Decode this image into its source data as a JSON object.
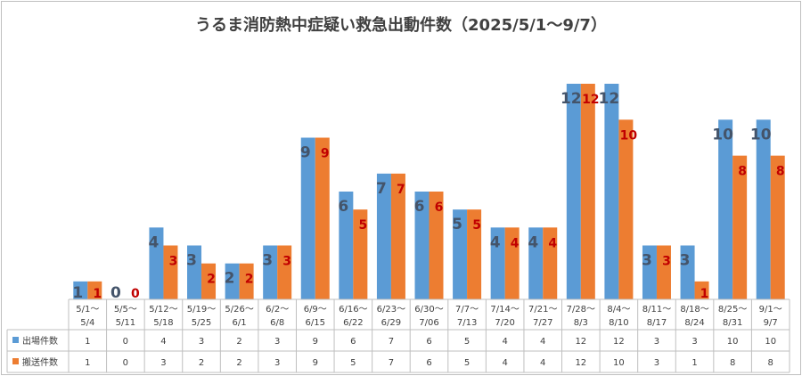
{
  "chart_data": {
    "type": "bar",
    "title": "うるま消防熱中症疑い救急出動件数（2025/5/1～9/7）",
    "categories": [
      [
        "5/1～",
        "5/4"
      ],
      [
        "5/5～",
        "5/11"
      ],
      [
        "5/12～",
        "5/18"
      ],
      [
        "5/19～",
        "5/25"
      ],
      [
        "5/26～",
        "6/1"
      ],
      [
        "6/2～",
        "6/8"
      ],
      [
        "6/9～",
        "6/15"
      ],
      [
        "6/16～",
        "6/22"
      ],
      [
        "6/23～",
        "6/29"
      ],
      [
        "6/30～",
        "7/06"
      ],
      [
        "7/7～",
        "7/13"
      ],
      [
        "7/14～",
        "7/20"
      ],
      [
        "7/21～",
        "7/27"
      ],
      [
        "7/28～",
        "8/3"
      ],
      [
        "8/4～",
        "8/10"
      ],
      [
        "8/11～",
        "8/17"
      ],
      [
        "8/18～",
        "8/24"
      ],
      [
        "8/25～",
        "8/31"
      ],
      [
        "9/1～",
        "9/7"
      ]
    ],
    "series": [
      {
        "name": "出場件数",
        "color": "#5b9bd5",
        "label_color": "#44546a",
        "values": [
          1,
          0,
          4,
          3,
          2,
          3,
          9,
          6,
          7,
          6,
          5,
          4,
          4,
          12,
          12,
          3,
          3,
          10,
          10
        ]
      },
      {
        "name": "搬送件数",
        "color": "#ed7d31",
        "label_color": "#c00000",
        "values": [
          1,
          0,
          3,
          2,
          2,
          3,
          9,
          5,
          7,
          6,
          5,
          4,
          4,
          12,
          10,
          3,
          1,
          8,
          8
        ]
      }
    ],
    "ylim": [
      0,
      12
    ],
    "grid": false,
    "legend": "data-table"
  }
}
